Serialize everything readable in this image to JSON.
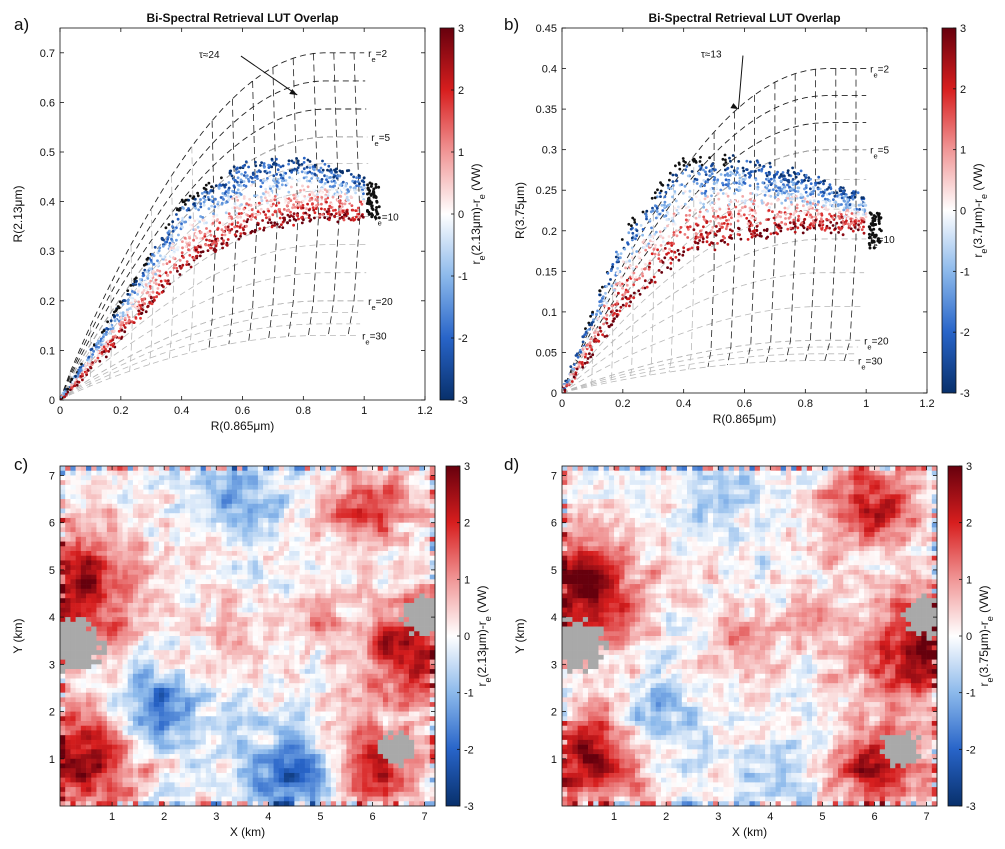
{
  "colors": {
    "neg": "#08306b",
    "mid": "#ffffff",
    "pos": "#67000d",
    "lut_cloud": "#111111",
    "lut_grid_light": "#b8b8b8",
    "lut_grid_dark": "#222222",
    "missing": "#a9a9a9"
  },
  "chart_data": [
    {
      "type": "scatter",
      "panel_label": "a)",
      "title": "Bi-Spectral Retrieval LUT Overlap",
      "xlabel": "R(0.865μm)",
      "ylabel": "R(2.13μm)",
      "xlim": [
        0,
        1.2
      ],
      "ylim": [
        0,
        0.75
      ],
      "xticks": [
        "0",
        "0.2",
        "0.4",
        "0.6",
        "0.8",
        "1",
        "1.2"
      ],
      "xtick_values": [
        0,
        0.2,
        0.4,
        0.6,
        0.8,
        1.0,
        1.2
      ],
      "yticks": [
        "0",
        "0.1",
        "0.2",
        "0.3",
        "0.4",
        "0.5",
        "0.6",
        "0.7"
      ],
      "ytick_values": [
        0,
        0.1,
        0.2,
        0.3,
        0.4,
        0.5,
        0.6,
        0.7
      ],
      "colorbar": {
        "label": "r_e(2.13μm)-r_e (VW)",
        "range": [
          -3,
          3
        ],
        "ticks": [
          "3",
          "2",
          "1",
          "0",
          "-1",
          "-2",
          "-3"
        ]
      },
      "lut": {
        "re_lines": [
          {
            "re": 2,
            "x_end": 1.0,
            "y_end": 0.7,
            "label": "r_e=2"
          },
          {
            "re": 5,
            "x_end": 1.01,
            "y_end": 0.53,
            "label": "r_e=5"
          },
          {
            "re": 10,
            "x_end": 1.02,
            "y_end": 0.37,
            "label": "r_e=10"
          },
          {
            "re": 20,
            "x_end": 1.0,
            "y_end": 0.2,
            "label": "r_e=20"
          },
          {
            "re": 30,
            "x_end": 0.98,
            "y_end": 0.13,
            "label": "r_e=30"
          }
        ],
        "tau_annotation": {
          "text": "τ≈24",
          "x": 0.78,
          "y": 0.615
        }
      },
      "point_cloud": {
        "upper_x": [
          0.0,
          0.2,
          0.4,
          0.6,
          0.8,
          1.0
        ],
        "upper_y": [
          0.0,
          0.2,
          0.4,
          0.48,
          0.49,
          0.45
        ],
        "lower_x": [
          0.0,
          0.2,
          0.4,
          0.6,
          0.8,
          1.0
        ],
        "lower_y": [
          0.0,
          0.12,
          0.26,
          0.33,
          0.36,
          0.36
        ],
        "black_cluster": {
          "x": 1.03,
          "y": 0.4
        }
      }
    },
    {
      "type": "scatter",
      "panel_label": "b)",
      "title": "Bi-Spectral Retrieval LUT Overlap",
      "xlabel": "R(0.865μm)",
      "ylabel": "R(3.75μm)",
      "xlim": [
        0,
        1.2
      ],
      "ylim": [
        0,
        0.45
      ],
      "xticks": [
        "0",
        "0.2",
        "0.4",
        "0.6",
        "0.8",
        "1",
        "1.2"
      ],
      "xtick_values": [
        0,
        0.2,
        0.4,
        0.6,
        0.8,
        1.0,
        1.2
      ],
      "yticks": [
        "0",
        "0.05",
        "0.1",
        "0.15",
        "0.2",
        "0.25",
        "0.3",
        "0.35",
        "0.4",
        "0.45"
      ],
      "ytick_values": [
        0,
        0.05,
        0.1,
        0.15,
        0.2,
        0.25,
        0.3,
        0.35,
        0.4,
        0.45
      ],
      "colorbar": {
        "label": "r_e(3.7μm)-r_e (VW)",
        "range": [
          -3,
          3
        ],
        "ticks": [
          "3",
          "2",
          "1",
          "0",
          "-1",
          "-2",
          "-3"
        ]
      },
      "lut": {
        "re_lines": [
          {
            "re": 2,
            "x_end": 1.0,
            "y_end": 0.4,
            "label": "r_e=2"
          },
          {
            "re": 5,
            "x_end": 1.0,
            "y_end": 0.3,
            "label": "r_e=5"
          },
          {
            "re": 10,
            "x_end": 1.0,
            "y_end": 0.19,
            "label": "r_e=10"
          },
          {
            "re": 20,
            "x_end": 0.98,
            "y_end": 0.065,
            "label": "r_e=20"
          },
          {
            "re": 30,
            "x_end": 0.96,
            "y_end": 0.04,
            "label": "r_e=30"
          }
        ],
        "tau_annotation": {
          "text": "τ≈13",
          "x": 0.58,
          "y": 0.35
        }
      },
      "point_cloud": {
        "upper_x": [
          0.0,
          0.2,
          0.4,
          0.6,
          0.8,
          1.0
        ],
        "upper_y": [
          0.0,
          0.2,
          0.29,
          0.29,
          0.27,
          0.24
        ],
        "lower_x": [
          0.0,
          0.2,
          0.4,
          0.6,
          0.8,
          1.0
        ],
        "lower_y": [
          0.0,
          0.1,
          0.17,
          0.19,
          0.2,
          0.2
        ],
        "black_cluster": {
          "x": 1.03,
          "y": 0.2
        }
      }
    },
    {
      "type": "heatmap",
      "panel_label": "c)",
      "title": "",
      "xlabel": "X (km)",
      "ylabel": "Y (km)",
      "xlim": [
        0,
        7.2
      ],
      "ylim": [
        0,
        7.2
      ],
      "xticks": [
        "1",
        "2",
        "3",
        "4",
        "5",
        "6",
        "7"
      ],
      "xtick_values": [
        1,
        2,
        3,
        4,
        5,
        6,
        7
      ],
      "yticks": [
        "1",
        "2",
        "3",
        "4",
        "5",
        "6",
        "7"
      ],
      "ytick_values": [
        1,
        2,
        3,
        4,
        5,
        6,
        7
      ],
      "colorbar": {
        "label": "r_e(2.13μm)-r_e (VW)",
        "range": [
          -3,
          3
        ],
        "ticks": [
          "3",
          "2",
          "1",
          "0",
          "-1",
          "-2",
          "-3"
        ]
      },
      "grid_size": 72,
      "value_range": [
        -3,
        3
      ],
      "missing_regions": [
        {
          "x": 0.3,
          "y": 3.4,
          "r": 0.6
        },
        {
          "x": 6.95,
          "y": 4.0,
          "r": 0.45
        },
        {
          "x": 6.5,
          "y": 1.2,
          "r": 0.4
        }
      ],
      "features": [
        {
          "x": 0.3,
          "y": 4.6,
          "r": 1.2,
          "v": 2.7
        },
        {
          "x": 0.5,
          "y": 1.0,
          "r": 1.0,
          "v": 2.6
        },
        {
          "x": 6.9,
          "y": 3.3,
          "r": 1.1,
          "v": 2.6
        },
        {
          "x": 6.0,
          "y": 0.8,
          "r": 0.9,
          "v": 2.3
        },
        {
          "x": 5.9,
          "y": 6.3,
          "r": 0.9,
          "v": 1.7
        },
        {
          "x": 1.9,
          "y": 2.0,
          "r": 0.8,
          "v": -2.0
        },
        {
          "x": 4.5,
          "y": 0.6,
          "r": 0.9,
          "v": -2.2
        },
        {
          "x": 3.4,
          "y": 6.6,
          "r": 0.8,
          "v": -1.2
        },
        {
          "x": 4.8,
          "y": 3.9,
          "r": 0.5,
          "v": 0.8
        },
        {
          "x": 3.5,
          "y": 3.5,
          "r": 0.8,
          "v": 0.6
        }
      ]
    },
    {
      "type": "heatmap",
      "panel_label": "d)",
      "title": "",
      "xlabel": "X (km)",
      "ylabel": "Y (km)",
      "xlim": [
        0,
        7.2
      ],
      "ylim": [
        0,
        7.2
      ],
      "xticks": [
        "1",
        "2",
        "3",
        "4",
        "5",
        "6",
        "7"
      ],
      "xtick_values": [
        1,
        2,
        3,
        4,
        5,
        6,
        7
      ],
      "yticks": [
        "1",
        "2",
        "3",
        "4",
        "5",
        "6",
        "7"
      ],
      "ytick_values": [
        1,
        2,
        3,
        4,
        5,
        6,
        7
      ],
      "colorbar": {
        "label": "r_e(3.75μm)-r_e (VW)",
        "range": [
          -3,
          3
        ],
        "ticks": [
          "3",
          "2",
          "1",
          "0",
          "-1",
          "-2",
          "-3"
        ]
      },
      "grid_size": 72,
      "value_range": [
        -3,
        3
      ],
      "missing_regions": [
        {
          "x": 0.3,
          "y": 3.4,
          "r": 0.6
        },
        {
          "x": 6.95,
          "y": 4.0,
          "r": 0.45
        },
        {
          "x": 6.5,
          "y": 1.2,
          "r": 0.4
        }
      ],
      "features": [
        {
          "x": 0.3,
          "y": 4.6,
          "r": 1.2,
          "v": 2.8
        },
        {
          "x": 0.5,
          "y": 1.0,
          "r": 1.0,
          "v": 2.7
        },
        {
          "x": 6.9,
          "y": 3.3,
          "r": 1.1,
          "v": 2.7
        },
        {
          "x": 6.0,
          "y": 0.8,
          "r": 0.9,
          "v": 2.5
        },
        {
          "x": 5.9,
          "y": 6.3,
          "r": 0.9,
          "v": 2.0
        },
        {
          "x": 1.9,
          "y": 2.0,
          "r": 0.8,
          "v": -1.2
        },
        {
          "x": 4.5,
          "y": 0.6,
          "r": 0.9,
          "v": -0.8
        },
        {
          "x": 3.4,
          "y": 6.6,
          "r": 0.8,
          "v": -0.6
        },
        {
          "x": 4.8,
          "y": 3.9,
          "r": 0.5,
          "v": 1.0
        },
        {
          "x": 3.5,
          "y": 3.5,
          "r": 0.8,
          "v": 0.9
        }
      ]
    }
  ]
}
